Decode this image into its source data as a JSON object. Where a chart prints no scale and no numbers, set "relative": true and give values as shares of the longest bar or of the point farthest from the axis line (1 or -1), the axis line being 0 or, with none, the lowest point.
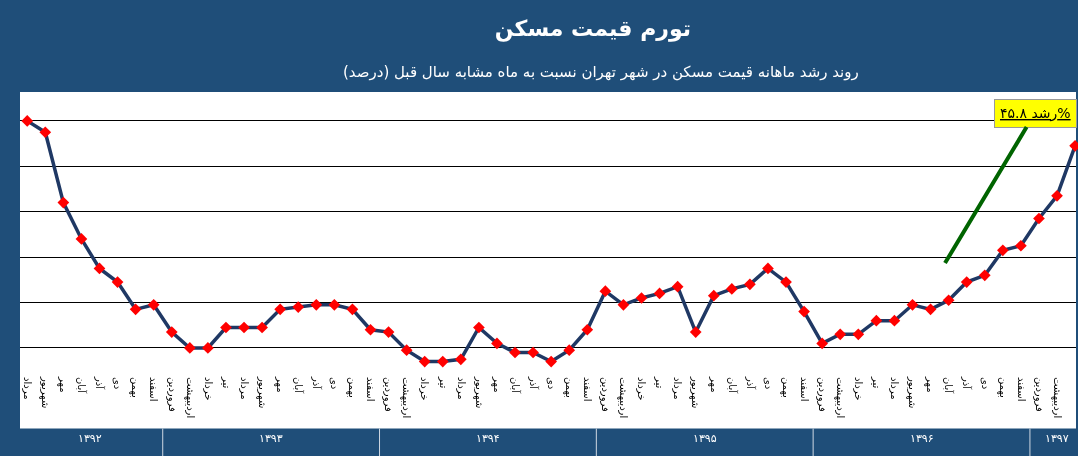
{
  "chart_data": {
    "type": "line",
    "title": "تورم قیمت مسکن",
    "subtitle": "روند رشد ماهانه قیمت مسکن در شهر تهران نسبت به ماه مشابه سال قبل (درصد)",
    "categories": [
      "مرداد",
      "شهریور",
      "مهر",
      "آبان",
      "آذر",
      "دی",
      "بهمن",
      "اسفند",
      "فروردین",
      "اردیبهشت",
      "خرداد",
      "تیر",
      "مرداد",
      "شهریور",
      "مهر",
      "آبان",
      "آذر",
      "دی",
      "بهمن",
      "اسفند",
      "فروردین",
      "اردیبهشت",
      "خرداد",
      "تیر",
      "مرداد",
      "شهریور",
      "مهر",
      "آبان",
      "آذر",
      "دی",
      "بهمن",
      "اسفند",
      "فروردین",
      "اردیبهشت",
      "خرداد",
      "تیر",
      "مرداد",
      "شهریور",
      "مهر",
      "آبان",
      "آذر",
      "دی",
      "بهمن",
      "اسفند",
      "فروردین",
      "اردیبهشت",
      "خرداد",
      "تیر",
      "مرداد",
      "شهریور",
      "مهر",
      "آبان",
      "آذر",
      "دی",
      "بهمن",
      "اسفند",
      "فروردین",
      "اردیبهشت",
      null
    ],
    "series": [
      {
        "color": "#1f3864",
        "colors": [
          "#ff0000",
          "#ff0000",
          "#ff0000",
          "#ff0000",
          "#ff0000",
          "#ff0000",
          "#ff0000",
          "#ff0000",
          "#ff0000",
          "#ff0000",
          "#ff0000",
          "#ff0000",
          "#ff0000",
          "#ff0000",
          "#ff0000",
          "#ff0000",
          "#ff0000",
          "#ff0000",
          "#ff0000",
          "#ff0000",
          "#ff0000",
          "#ff0000",
          "#ff0000",
          "#ff0000",
          "#ff0000",
          "#ff0000",
          "#ff0000",
          "#ff0000",
          "#ff0000",
          "#ff0000",
          "#ff0000",
          "#ff0000",
          "#ff0000",
          "#ff0000",
          "#ff0000",
          "#ff0000",
          "#ff0000",
          "#ff0000",
          "#ff0000",
          "#ff0000",
          "#ff0000",
          "#ff0000",
          "#ff0000",
          "#ff0000",
          "#ff0000",
          "#ff0000",
          "#ff0000",
          "#ff0000",
          "#ff0000",
          "#ff0000",
          "#ff0000",
          "#ff0000",
          "#ff0000",
          "#ff0000",
          "#ff0000",
          "#ff0000",
          "#ff0000",
          "#ff0000",
          "#ff0000"
        ],
        "values": [
          1,
          0.95,
          0.64,
          0.48,
          0.35,
          0.29,
          0.17,
          0.19,
          0.07,
          0.0,
          0.0,
          0.09,
          0.09,
          0.09,
          0.17,
          0.18,
          0.19,
          0.19,
          0.17,
          0.08,
          0.07,
          -0.01,
          -0.06,
          -0.06,
          -0.05,
          0.09,
          0.02,
          -0.02,
          -0.02,
          -0.06,
          -0.01,
          0.08,
          0.25,
          0.19,
          0.22,
          0.24,
          0.27,
          0.07,
          0.23,
          0.26,
          0.28,
          0.35,
          0.29,
          0.16,
          0.02,
          0.06,
          0.06,
          0.12,
          0.12,
          0.19,
          0.17,
          0.21,
          0.29,
          0.32,
          0.43,
          0.45,
          0.57,
          0.67,
          0.89
        ]
      }
    ],
    "relative": true,
    "marker": "diamond",
    "grid": "y",
    "legend": false,
    "annotations": [
      "رشد ۴۵.۸%",
      "۱۳۹۲",
      "۱۳۹۳",
      "۱۳۹۴",
      "۱۳۹۵",
      "۱۳۹۶",
      "۱۳۹۷"
    ]
  }
}
